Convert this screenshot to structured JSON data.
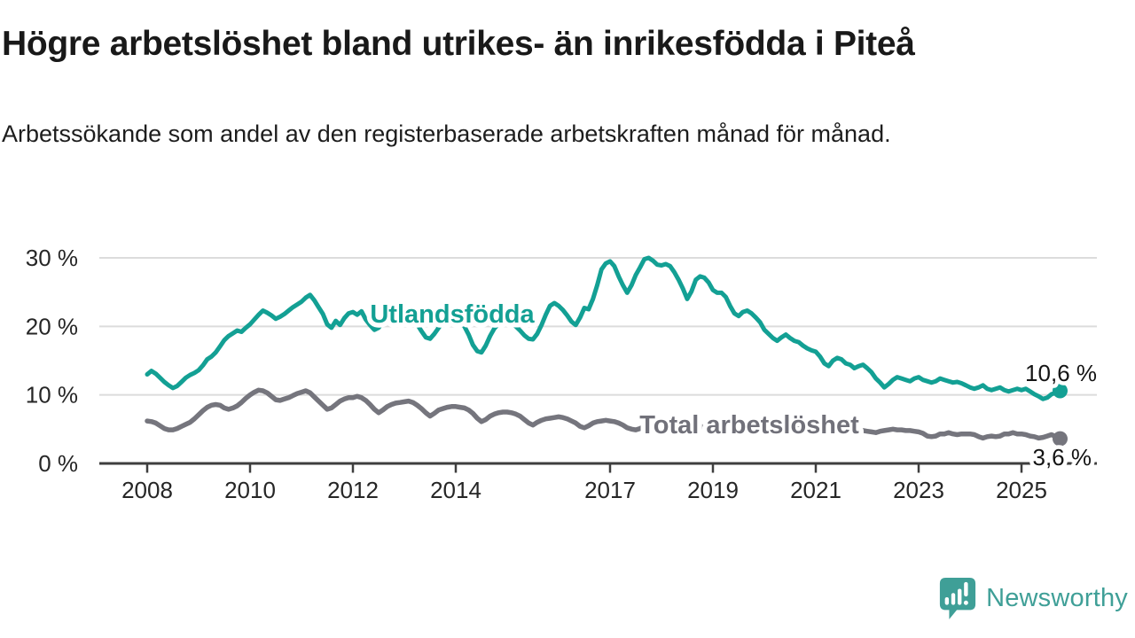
{
  "header": {
    "title": "Högre arbetslöshet bland utrikes- än inrikesfödda i Piteå",
    "subtitle": "Arbetssökande som andel av den registerbaserade arbetskraften månad för månad."
  },
  "footer": {
    "brand": "Newsworthy"
  },
  "colors": {
    "teal_line": "#13a094",
    "gray_line": "#75757d",
    "gray_label": "#71717a",
    "logo_teal": "#3f9f97",
    "grid": "#dcdcdc",
    "axis": "#3e3e3e",
    "tick_text": "#262626",
    "title_text": "#191919"
  },
  "chart_data": {
    "type": "line",
    "title": "Högre arbetslöshet bland utrikes- än inrikesfödda i Piteå",
    "subtitle": "Arbetssökande som andel av den registerbaserade arbetskraften månad för månad.",
    "unit": "%",
    "x_unit": "month",
    "x_start": "2008-01",
    "x_end": "2025-10",
    "xlim": [
      2008,
      2025.83
    ],
    "ylim": [
      0,
      31
    ],
    "grid": "horizontal",
    "legend": "inline-labels",
    "x_ticks": [
      2008,
      2010,
      2012,
      2014,
      2017,
      2019,
      2021,
      2023,
      2025
    ],
    "y_ticks": [
      30,
      20,
      10,
      0
    ],
    "y_tick_labels": [
      "30 %",
      "20 %",
      "10 %",
      "0 %"
    ],
    "series": [
      {
        "name": "Utlandsfödda",
        "color": "#13a094",
        "end_label": "10,6 %",
        "end_value": 10.6,
        "values": [
          13.0,
          13.5,
          13.1,
          12.5,
          11.9,
          11.4,
          11.0,
          11.3,
          11.9,
          12.5,
          12.9,
          13.2,
          13.6,
          14.3,
          15.2,
          15.6,
          16.2,
          17.1,
          18.0,
          18.6,
          19.0,
          19.4,
          19.2,
          19.8,
          20.3,
          21.0,
          21.7,
          22.3,
          22.0,
          21.6,
          21.1,
          21.4,
          21.8,
          22.3,
          22.8,
          23.2,
          23.6,
          24.2,
          24.6,
          23.8,
          22.8,
          21.8,
          20.3,
          19.8,
          20.8,
          20.2,
          21.2,
          21.9,
          22.1,
          21.7,
          22.2,
          21.0,
          20.2,
          19.5,
          19.8,
          20.6,
          21.3,
          21.9,
          22.1,
          22.3,
          22.2,
          21.8,
          21.2,
          20.3,
          19.3,
          18.4,
          18.2,
          18.9,
          19.8,
          20.6,
          21.1,
          21.3,
          21.2,
          20.8,
          20.0,
          18.8,
          17.3,
          16.4,
          16.2,
          17.2,
          18.6,
          19.7,
          20.4,
          20.7,
          20.8,
          20.5,
          20.0,
          19.4,
          18.7,
          18.2,
          18.1,
          18.9,
          20.2,
          21.7,
          23.0,
          23.4,
          23.0,
          22.4,
          21.6,
          20.7,
          20.2,
          21.3,
          22.7,
          22.5,
          24.0,
          26.0,
          28.3,
          29.2,
          29.5,
          28.8,
          27.3,
          26.0,
          24.9,
          26.0,
          27.5,
          28.6,
          29.8,
          30.0,
          29.6,
          29.0,
          28.9,
          29.1,
          28.8,
          27.9,
          26.8,
          25.5,
          24.0,
          25.1,
          26.8,
          27.3,
          27.1,
          26.4,
          25.3,
          24.9,
          24.9,
          24.3,
          23.0,
          21.9,
          21.5,
          22.1,
          22.3,
          21.9,
          21.3,
          20.6,
          19.5,
          18.9,
          18.3,
          17.9,
          18.4,
          18.8,
          18.3,
          17.9,
          17.7,
          17.2,
          16.8,
          16.5,
          16.3,
          15.6,
          14.6,
          14.2,
          15.0,
          15.4,
          15.2,
          14.6,
          14.4,
          13.9,
          14.2,
          14.4,
          13.9,
          13.3,
          12.4,
          11.8,
          11.1,
          11.6,
          12.2,
          12.6,
          12.4,
          12.2,
          12.0,
          12.4,
          12.6,
          12.2,
          12.0,
          11.8,
          12.0,
          12.4,
          12.2,
          12.0,
          11.8,
          11.9,
          11.7,
          11.4,
          11.1,
          10.9,
          11.1,
          11.4,
          10.9,
          10.7,
          10.9,
          11.1,
          10.7,
          10.5,
          10.7,
          10.9,
          10.7,
          10.9,
          10.5,
          10.1,
          9.8,
          9.4,
          9.6,
          10.1,
          10.3,
          10.6
        ]
      },
      {
        "name": "Total arbetslöshet",
        "color": "#75757d",
        "end_label": "3,6 %",
        "end_value": 3.6,
        "values": [
          6.2,
          6.1,
          5.9,
          5.5,
          5.1,
          4.9,
          4.9,
          5.1,
          5.4,
          5.7,
          6.0,
          6.5,
          7.1,
          7.7,
          8.2,
          8.5,
          8.6,
          8.5,
          8.1,
          7.9,
          8.1,
          8.4,
          8.9,
          9.5,
          10.0,
          10.4,
          10.7,
          10.6,
          10.3,
          9.8,
          9.3,
          9.2,
          9.4,
          9.6,
          9.9,
          10.2,
          10.4,
          10.6,
          10.3,
          9.7,
          9.1,
          8.5,
          7.9,
          8.1,
          8.6,
          9.1,
          9.4,
          9.6,
          9.6,
          9.8,
          9.6,
          9.2,
          8.6,
          7.9,
          7.4,
          7.8,
          8.3,
          8.6,
          8.8,
          8.9,
          9.0,
          9.1,
          8.9,
          8.5,
          8.0,
          7.4,
          6.9,
          7.3,
          7.8,
          8.0,
          8.2,
          8.3,
          8.3,
          8.2,
          8.1,
          7.8,
          7.3,
          6.6,
          6.1,
          6.4,
          6.9,
          7.2,
          7.4,
          7.5,
          7.5,
          7.4,
          7.2,
          6.9,
          6.4,
          5.9,
          5.6,
          6.0,
          6.3,
          6.5,
          6.6,
          6.7,
          6.8,
          6.7,
          6.5,
          6.2,
          5.9,
          5.4,
          5.2,
          5.5,
          5.9,
          6.1,
          6.2,
          6.3,
          6.2,
          6.1,
          5.9,
          5.6,
          5.2,
          5.0,
          4.9,
          5.1,
          5.4,
          5.6,
          5.7,
          5.8,
          5.8,
          5.7,
          5.6,
          5.4,
          5.1,
          4.8,
          4.7,
          4.9,
          5.2,
          5.3,
          5.4,
          5.5,
          5.5,
          5.4,
          5.3,
          5.1,
          4.9,
          4.6,
          4.5,
          4.7,
          5.0,
          5.2,
          5.3,
          5.4,
          5.5,
          5.7,
          5.9,
          6.1,
          6.1,
          6.0,
          5.9,
          5.8,
          5.7,
          5.6,
          5.5,
          5.4,
          5.3,
          5.2,
          5.1,
          5.0,
          4.9,
          4.7,
          4.6,
          4.7,
          4.8,
          4.9,
          4.9,
          4.8,
          4.7,
          4.6,
          4.5,
          4.7,
          4.8,
          4.9,
          5.0,
          4.9,
          4.9,
          4.8,
          4.8,
          4.7,
          4.6,
          4.4,
          4.0,
          3.9,
          4.0,
          4.3,
          4.3,
          4.5,
          4.3,
          4.2,
          4.3,
          4.3,
          4.3,
          4.2,
          3.9,
          3.7,
          3.9,
          4.0,
          3.9,
          4.0,
          4.3,
          4.3,
          4.5,
          4.3,
          4.3,
          4.2,
          4.0,
          3.9,
          3.7,
          3.8,
          4.0,
          4.2,
          3.9,
          3.6
        ]
      }
    ]
  }
}
